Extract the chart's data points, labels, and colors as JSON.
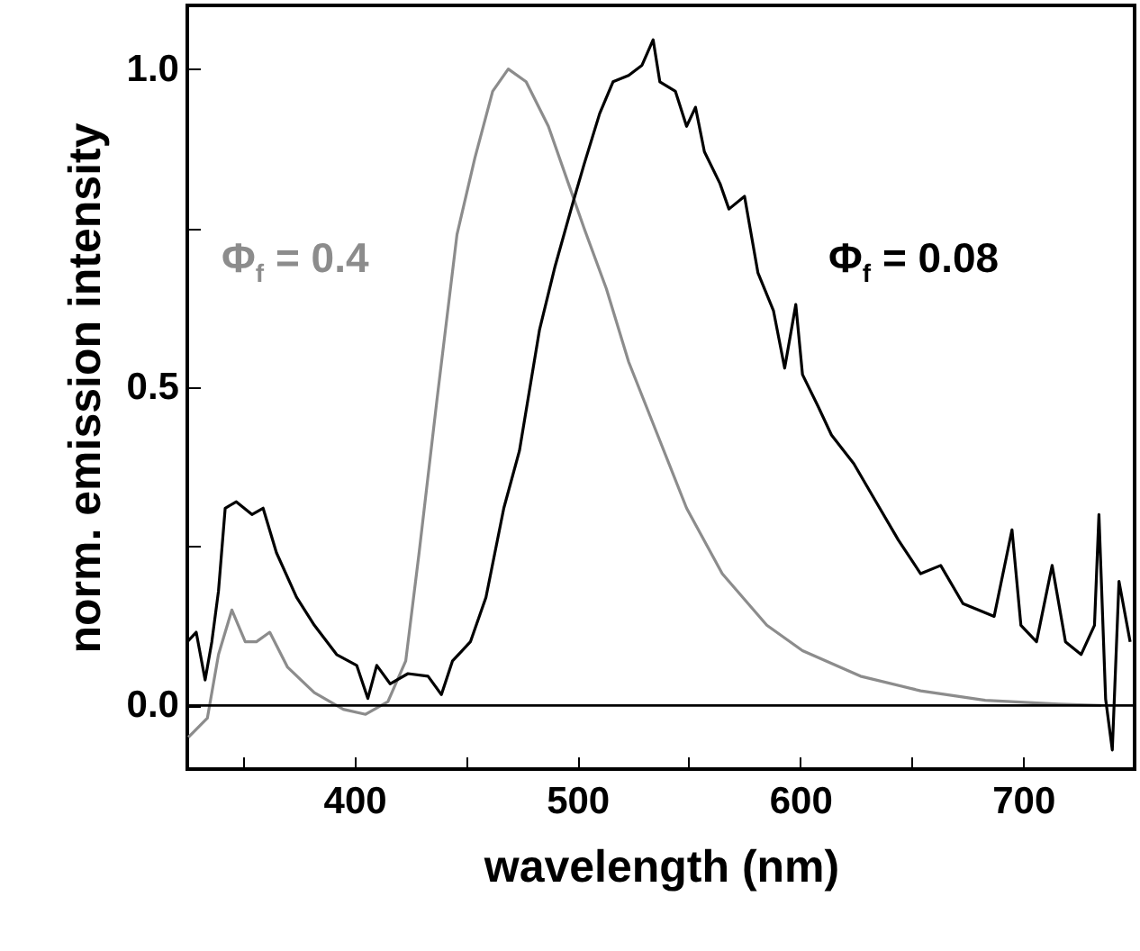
{
  "chart_data": {
    "type": "line",
    "xlabel": "wavelength (nm)",
    "ylabel": "norm. emission intensity",
    "xlim": [
      325,
      750
    ],
    "ylim": [
      -0.1,
      1.1
    ],
    "xticks": [
      {
        "value": 350,
        "label": null
      },
      400,
      {
        "value": 450,
        "label": null
      },
      500,
      {
        "value": 550,
        "label": null
      },
      600,
      {
        "value": 650,
        "label": null
      },
      700
    ],
    "yticks": [
      {
        "value": 0,
        "label": "0.0"
      },
      {
        "value": 0.25,
        "label": null
      },
      0.5,
      {
        "value": 0.75,
        "label": null
      },
      {
        "value": 1,
        "label": "1.0"
      }
    ],
    "grid": false,
    "line_style": "solid",
    "ref_lines": [
      {
        "axis": "y",
        "value": 0,
        "color": "#000000"
      }
    ],
    "series": [
      {
        "name": "Φ$_{f}$ = 0.4",
        "color": "#8c8c8c",
        "x": [
          325.5,
          334,
          339,
          345,
          351,
          356,
          362,
          370,
          382,
          395,
          405,
          415,
          423,
          429,
          437,
          446,
          454,
          462,
          469,
          477,
          487,
          496,
          503,
          513,
          523,
          536,
          549,
          565,
          585,
          601,
          627,
          654,
          683,
          716,
          735
        ],
        "values": [
          -0.05,
          -0.02,
          0.08,
          0.15,
          0.1,
          0.1,
          0.115,
          0.06,
          0.02,
          -0.006,
          -0.014,
          0.006,
          0.07,
          0.24,
          0.48,
          0.74,
          0.86,
          0.965,
          1.0,
          0.98,
          0.91,
          0.82,
          0.75,
          0.655,
          0.54,
          0.425,
          0.31,
          0.207,
          0.126,
          0.086,
          0.046,
          0.023,
          0.008,
          0.002,
          0
        ]
      },
      {
        "name": "Φ$_{f}$ = 0.08",
        "color": "#000000",
        "x": [
          325,
          329,
          333,
          336,
          339,
          342,
          347,
          354,
          359,
          365,
          374,
          382,
          392,
          401,
          406,
          410,
          416,
          424,
          433,
          439,
          444,
          452,
          459,
          467,
          474,
          483,
          490,
          498,
          503,
          510,
          516,
          523,
          529,
          534,
          537,
          544,
          549,
          553,
          557,
          564,
          568,
          575,
          581,
          588,
          593,
          598,
          601,
          608,
          614,
          624,
          634,
          644,
          654,
          663,
          673,
          687,
          695,
          699,
          706,
          713,
          719,
          726,
          732,
          734,
          737,
          740,
          743,
          748
        ],
        "values": [
          0.1,
          0.115,
          0.04,
          0.1,
          0.18,
          0.31,
          0.32,
          0.3,
          0.31,
          0.24,
          0.17,
          0.126,
          0.08,
          0.063,
          0.011,
          0.063,
          0.034,
          0.05,
          0.046,
          0.017,
          0.07,
          0.1,
          0.17,
          0.31,
          0.4,
          0.59,
          0.69,
          0.79,
          0.85,
          0.93,
          0.98,
          0.99,
          1.006,
          1.046,
          0.98,
          0.965,
          0.91,
          0.94,
          0.87,
          0.82,
          0.78,
          0.8,
          0.68,
          0.62,
          0.53,
          0.63,
          0.52,
          0.47,
          0.425,
          0.38,
          0.32,
          0.26,
          0.207,
          0.22,
          0.16,
          0.14,
          0.276,
          0.126,
          0.1,
          0.22,
          0.1,
          0.08,
          0.126,
          0.3,
          0.01,
          -0.07,
          0.195,
          0.1
        ]
      }
    ]
  }
}
